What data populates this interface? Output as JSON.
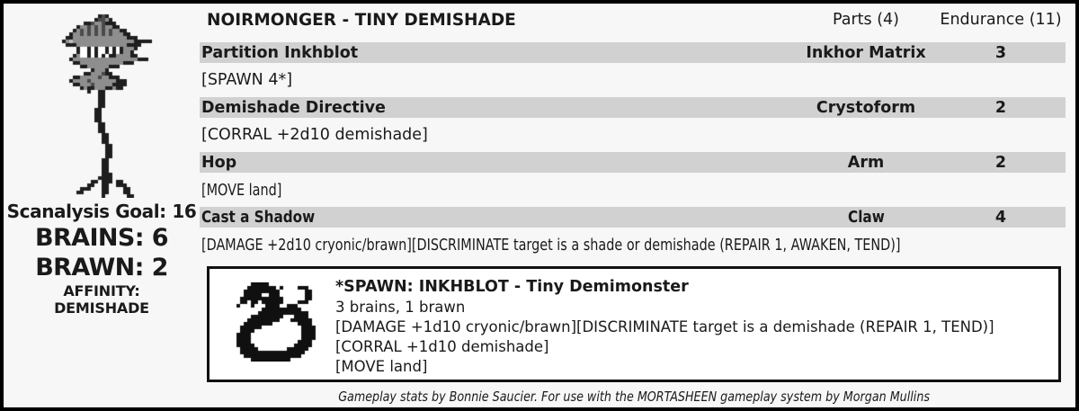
{
  "colors": {
    "background": "#f7f7f7",
    "row_band": "#d1d1d1",
    "text": "#1a1a1a",
    "border": "#000000",
    "spawn_box_background": "#ffffff"
  },
  "header": {
    "title": "NOIRMONGER - TINY DEMISHADE",
    "parts_label": "Parts (4)",
    "endurance_label": "Endurance (11)"
  },
  "left_panel": {
    "creature_image": "noirmonger-pixel-art",
    "scanalysis": "Scanalysis Goal: 16",
    "brains": "BRAINS: 6",
    "brawn": "BRAWN: 2",
    "affinity_label": "AFFINITY:",
    "affinity_value": "DEMISHADE"
  },
  "moves": [
    {
      "name": "Partition Inkhblot",
      "part": "Inkhor Matrix",
      "value": "3",
      "effect": "[SPAWN 4*]"
    },
    {
      "name": "Demishade Directive",
      "part": "Crystoform",
      "value": "2",
      "effect": "[CORRAL +2d10 demishade]"
    },
    {
      "name": "Hop",
      "part": "Arm",
      "value": "2",
      "effect": "[MOVE land]"
    },
    {
      "name": "Cast a Shadow",
      "part": "Claw",
      "value": "4",
      "effect": "[DAMAGE +2d10 cryonic/brawn][DISCRIMINATE target is a shade or demishade (REPAIR 1, AWAKEN, TEND)]"
    }
  ],
  "spawn_box": {
    "image": "inkhblot-pixel-art",
    "title": "*SPAWN: INKHBLOT - Tiny Demimonster",
    "stats": "3 brains, 1 brawn",
    "lines": [
      "[DAMAGE +1d10 cryonic/brawn][DISCRIMINATE target is a demishade (REPAIR 1, TEND)]",
      "[CORRAL +1d10 demishade]",
      "[MOVE land]"
    ]
  },
  "footer": {
    "credit": "Gameplay stats by Bonnie Saucier. For use with the MORTASHEEN gameplay system by Morgan Mullins"
  },
  "sprites": {
    "noirmonger": {
      "cell": 4,
      "palette": {
        "k": "#1e1e1e",
        "d": "#4a4a4a",
        "g": "#8e8e8e",
        "l": "#c0c0c0",
        "w": "#ffffff"
      },
      "rows": [
        "..................................",
        ".............kdk..................",
        "............kddgk.................",
        ".........kkdggdkkk................",
        ".......kggdgdgdggkk...............",
        "......kgdgdgdgdgdggkk.............",
        ".....kggdgdgdgdgdgggkk............",
        "....kkgggggggggggggggkkk..........",
        "...kglgggggggggggggggggkkkkk......",
        "....kkkggggggggggggggkkkk.........",
        ".......kwwkwkwwkwkwkgggk..........",
        ".......kwwkwkwwkwkwkggk...........",
        "......kgwwkwkwkwkkggggkk..........",
        ".....kggggggggggggggggggkkk.......",
        "......kkggggggggggggkkk...........",
        "........kkggggggkkk...............",
        "...........kgggk..................",
        ".........kkgggdkk.................",
        "......kkgggggdggkkk...............",
        ".....kggggdgggggggkkk.............",
        "......kkgggdgggggkkkk.............",
        "........kgkkgggkkgkk..............",
        "..........k..kk...................",
        ".............kk...................",
        ".............kk...................",
        ".............kk...................",
        ".............kk...................",
        "............kk....................",
        "............kk....................",
        "............kk....................",
        "............kk....................",
        ".............kk...................",
        ".............kk...................",
        ".............kk...................",
        "..............kk..................",
        "..............kk..................",
        "..............kk..................",
        "...............kk.................",
        "...............kk.................",
        "...............kk.................",
        "...............kk.................",
        "..............kk..................",
        "..............kk..................",
        "..............kk..................",
        "..............kk..................",
        "..............kkk.................",
        ".............kkkk.................",
        "...........kk.kkk.kk..............",
        "..........kk..kk..kkk.............",
        "........kkk...kk....kk............",
        ".......kk.....kk....kk............",
        "..............k......kk..........."
      ]
    },
    "inkhblot": {
      "cell": 4,
      "palette": {
        "#": "#101010"
      },
      "rows": [
        ".....#####..............",
        "....########.#....###...",
        "...##########.......##..",
        "...#####..###.......##..",
        "..############......##..",
        "..##.##.######....###...",
        ".#...#...####..###......",
        "........###########.....",
        ".......##############...",
        ".....#########...####...",
        "....#########...######..",
        "...########.......####..",
        "..######...........####.",
        "..####.............####.",
        ".####..............####.",
        ".####..............####.",
        ".####.............####..",
        ".#####...........#####..",
        "..#####........######...",
        "..##################....",
        "...################.....",
        ".....###########........"
      ]
    }
  }
}
